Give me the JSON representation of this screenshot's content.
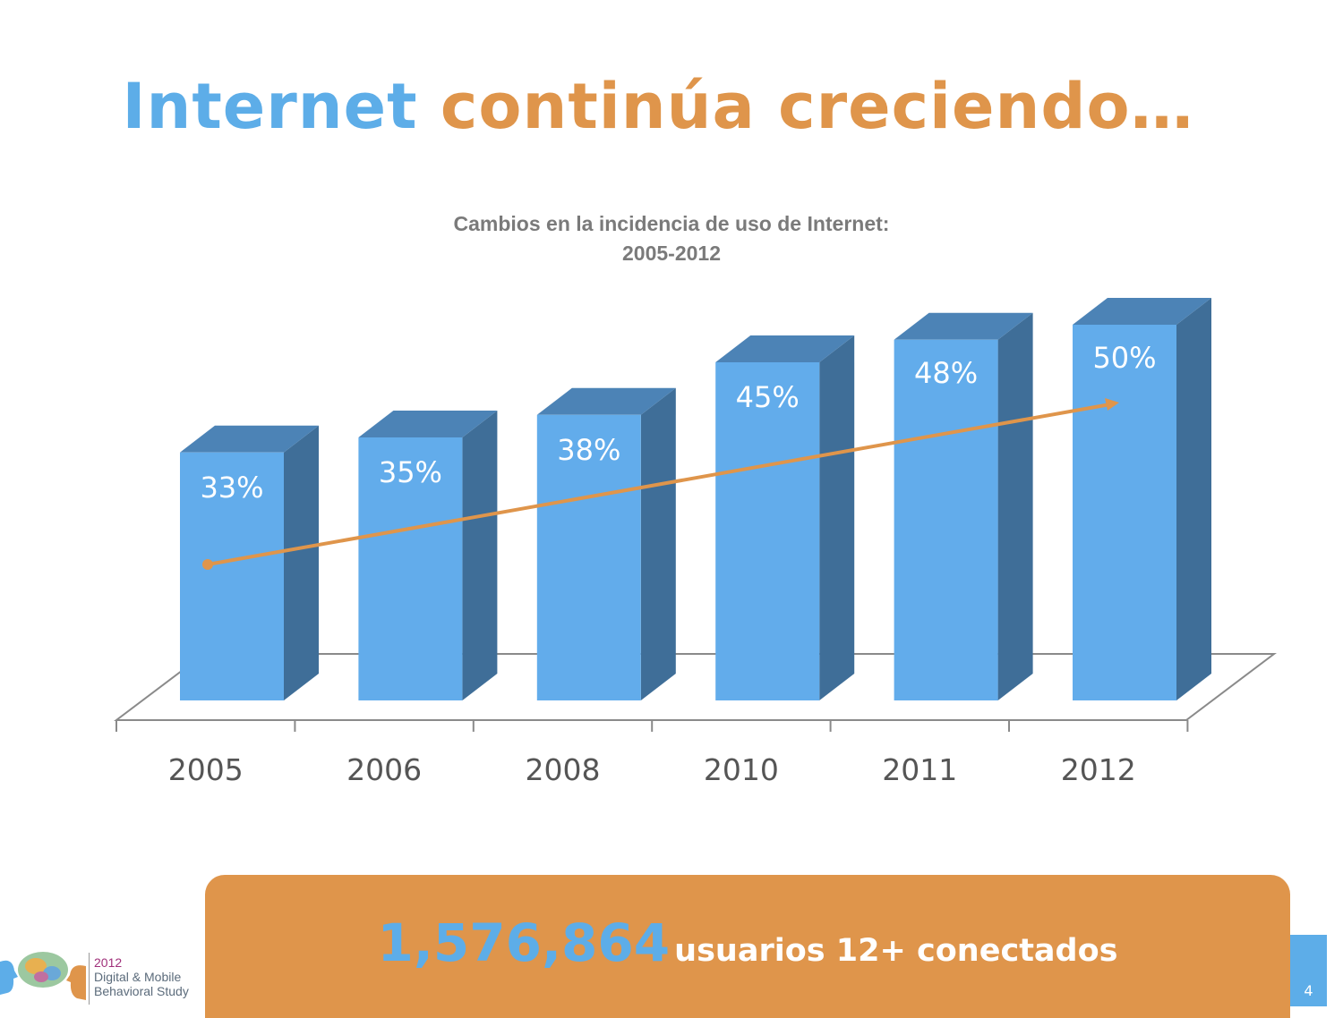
{
  "title": {
    "part1": "Internet",
    "part2": "continúa creciendo…"
  },
  "banner": {
    "number": "1,576,864",
    "text": "usuarios 12+ conectados"
  },
  "page_number": "4",
  "logo": {
    "year": "2012",
    "line1": "Digital & Mobile",
    "line2": "Behavioral Study"
  },
  "colors": {
    "bar": "#62aceb",
    "bar_side": "#3f6e98",
    "bar_top": "#4c83b6",
    "trend": "#df954b"
  },
  "chart_data": {
    "type": "bar",
    "title": "Cambios en la incidencia de uso de Internet:",
    "subtitle": "2005-2012",
    "categories": [
      "2005",
      "2006",
      "2008",
      "2010",
      "2011",
      "2012"
    ],
    "values": [
      33,
      35,
      38,
      45,
      48,
      50
    ],
    "labels": [
      "33%",
      "35%",
      "38%",
      "45%",
      "48%",
      "50%"
    ],
    "ylim": [
      0,
      50
    ],
    "trendline": true,
    "grid": false,
    "xlabel": "",
    "ylabel": ""
  }
}
